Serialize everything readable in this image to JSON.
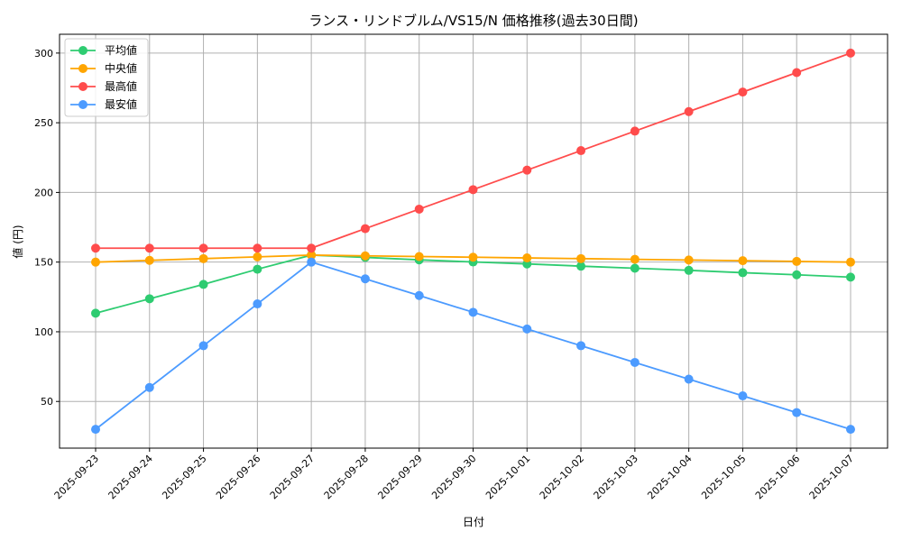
{
  "chart_data": {
    "type": "line",
    "title": "ランス・リンドブルム/VS15/N 価格推移(過去30日間)",
    "xlabel": "日付",
    "ylabel": "値 (円)",
    "ylim": [
      16.5,
      313.5
    ],
    "yticks": [
      50,
      100,
      150,
      200,
      250,
      300
    ],
    "grid": true,
    "legend_position": "top-left",
    "categories": [
      "2025-09-23",
      "2025-09-24",
      "2025-09-25",
      "2025-09-26",
      "2025-09-27",
      "2025-09-28",
      "2025-09-29",
      "2025-09-30",
      "2025-10-01",
      "2025-10-02",
      "2025-10-03",
      "2025-10-04",
      "2025-10-05",
      "2025-10-06",
      "2025-10-07"
    ],
    "series": [
      {
        "name": "平均値",
        "color": "#2ecc71",
        "values": [
          113.3,
          123.7,
          134,
          144.9,
          155,
          153.4,
          151.6,
          150.1,
          148.7,
          147.1,
          145.6,
          144.1,
          142.4,
          140.9,
          139.2
        ]
      },
      {
        "name": "中央値",
        "color": "#ffa500",
        "values": [
          150,
          151.25,
          152.5,
          153.75,
          155,
          154.5,
          154,
          153.5,
          153,
          152.5,
          152,
          151.5,
          151,
          150.5,
          150
        ]
      },
      {
        "name": "最高値",
        "color": "#ff4c4c",
        "values": [
          160,
          160,
          160,
          160,
          160,
          174,
          188,
          202,
          216,
          230,
          244,
          258,
          272,
          286,
          300
        ]
      },
      {
        "name": "最安値",
        "color": "#4c9bff",
        "values": [
          30,
          60,
          90,
          120,
          150,
          138,
          126,
          114,
          102,
          90,
          78,
          66,
          54,
          42,
          30
        ]
      }
    ]
  }
}
